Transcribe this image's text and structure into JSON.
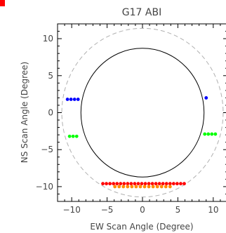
{
  "chart_data": {
    "type": "scatter",
    "title": "G17 ABI",
    "xlabel": "EW Scan Angle (Degree)",
    "ylabel": "NS Scan Angle (Degree)",
    "xlim": [
      -12,
      12
    ],
    "ylim": [
      -12,
      12
    ],
    "xticks": [
      -10,
      -5,
      0,
      5,
      10
    ],
    "xtick_labels": [
      "−10",
      "−5",
      "0",
      "5",
      "10"
    ],
    "yticks": [
      -10,
      -5,
      0,
      5,
      10
    ],
    "ytick_labels": [
      "−10",
      "−5",
      "0",
      "5",
      "10"
    ],
    "grid": false,
    "legend": "none",
    "colors": {
      "frame": "#000000",
      "text": "#444444",
      "accent_mark": "#ff0000",
      "earth_disk": "#000000",
      "field_of_regard": "#b0b0b0"
    },
    "curves": [
      {
        "kind": "circle",
        "style": "solid",
        "center": [
          0,
          0
        ],
        "radius_x": 8.7,
        "radius_y": 8.7,
        "color": "#000000"
      },
      {
        "kind": "circle",
        "style": "dashed",
        "center": [
          0,
          0
        ],
        "radius_x": 11.4,
        "radius_y": 11.4,
        "color": "#b0b0b0"
      }
    ],
    "series": [
      {
        "color": "#0000ff",
        "points": [
          [
            -10.6,
            1.8
          ],
          [
            -10.1,
            1.8
          ],
          [
            -9.6,
            1.8
          ],
          [
            -9.1,
            1.8
          ],
          [
            9.0,
            2.0
          ]
        ]
      },
      {
        "color": "#00ff00",
        "points": [
          [
            -10.3,
            -3.2
          ],
          [
            -9.8,
            -3.2
          ],
          [
            -9.3,
            -3.2
          ],
          [
            8.8,
            -2.9
          ],
          [
            9.3,
            -2.9
          ],
          [
            9.8,
            -2.9
          ],
          [
            10.3,
            -2.9
          ]
        ]
      },
      {
        "color": "#ff0000",
        "points": [
          [
            -5.6,
            -9.6
          ],
          [
            -5.1,
            -9.6
          ],
          [
            -4.6,
            -9.6
          ],
          [
            -4.1,
            -9.6
          ],
          [
            -3.6,
            -9.6
          ],
          [
            -3.1,
            -9.6
          ],
          [
            -2.6,
            -9.6
          ],
          [
            -2.1,
            -9.6
          ],
          [
            -1.6,
            -9.6
          ],
          [
            -1.1,
            -9.6
          ],
          [
            -0.6,
            -9.6
          ],
          [
            -0.1,
            -9.6
          ],
          [
            0.4,
            -9.6
          ],
          [
            0.9,
            -9.6
          ],
          [
            1.4,
            -9.6
          ],
          [
            1.9,
            -9.6
          ],
          [
            2.4,
            -9.6
          ],
          [
            2.9,
            -9.6
          ],
          [
            3.4,
            -9.6
          ],
          [
            3.9,
            -9.6
          ],
          [
            4.4,
            -9.6
          ],
          [
            4.9,
            -9.6
          ],
          [
            5.4,
            -9.6
          ],
          [
            5.9,
            -9.6
          ]
        ]
      },
      {
        "color": "#ff8c00",
        "points": [
          [
            -3.9,
            -10.0
          ],
          [
            -3.3,
            -10.0
          ],
          [
            -2.7,
            -10.0
          ],
          [
            -2.1,
            -10.0
          ],
          [
            -1.5,
            -10.0
          ],
          [
            -0.9,
            -10.0
          ],
          [
            -0.3,
            -10.0
          ],
          [
            0.3,
            -10.0
          ],
          [
            0.9,
            -10.0
          ],
          [
            1.5,
            -10.0
          ],
          [
            2.1,
            -10.0
          ],
          [
            2.7,
            -10.0
          ],
          [
            3.3,
            -10.0
          ],
          [
            3.9,
            -10.0
          ]
        ]
      }
    ]
  }
}
